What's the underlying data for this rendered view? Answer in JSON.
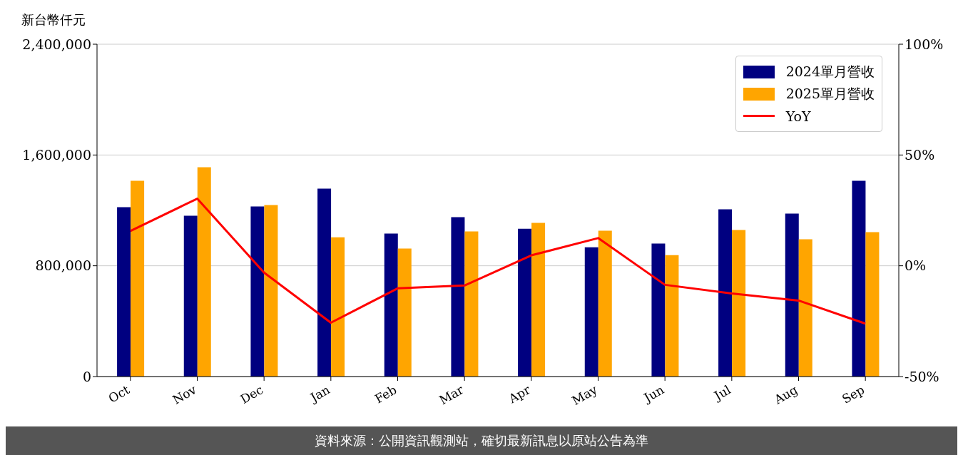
{
  "chart_data": {
    "type": "bar",
    "ylabel": "新台幣仟元",
    "categories": [
      "Oct",
      "Nov",
      "Dec",
      "Jan",
      "Feb",
      "Mar",
      "Apr",
      "May",
      "Jun",
      "Jul",
      "Aug",
      "Sep"
    ],
    "series": [
      {
        "name": "2024單月營收",
        "color": "#000080",
        "values": [
          1223000,
          1161000,
          1228000,
          1357000,
          1032000,
          1151000,
          1068000,
          934000,
          960000,
          1208000,
          1177000,
          1414000
        ]
      },
      {
        "name": "2025單月營收",
        "color": "#ffa500",
        "values": [
          1414000,
          1512000,
          1239000,
          1006000,
          924000,
          1048000,
          1110000,
          1053000,
          877000,
          1058000,
          991000,
          1043000
        ]
      },
      {
        "name": "YoY",
        "type": "line",
        "axis": "y2",
        "color": "#ff0000",
        "marker": "none",
        "values": [
          15.7,
          30.3,
          -3.1,
          -25.7,
          -10.2,
          -8.9,
          4.7,
          12.5,
          -8.6,
          -12.5,
          -15.7,
          -26.1
        ]
      }
    ],
    "ylim": [
      0,
      2400000
    ],
    "yticks": [
      {
        "value": 0,
        "label": "0"
      },
      {
        "value": 800000,
        "label": "800,000"
      },
      {
        "value": 1600000,
        "label": "1,600,000"
      },
      {
        "value": 2400000,
        "label": "2,400,000"
      }
    ],
    "y2lim": [
      -50,
      100
    ],
    "y2ticks": [
      {
        "value": -50,
        "label": "-50%"
      },
      {
        "value": 0,
        "label": "0%"
      },
      {
        "value": 50,
        "label": "50%"
      },
      {
        "value": 100,
        "label": "100%"
      }
    ],
    "grid": "y",
    "legend": "top right",
    "annotations": [
      "資料來源：公開資訊觀測站，確切最新訊息以原站公告為準"
    ]
  }
}
